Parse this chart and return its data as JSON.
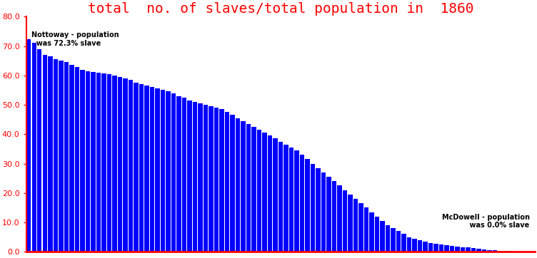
{
  "title": "total  no. of slaves/total population in  1860",
  "title_color": "red",
  "title_fontsize": 14,
  "bar_color": "blue",
  "background_color": "white",
  "axis_color": "red",
  "tick_color": "red",
  "annotation_left_text": "Nottoway - population\n  was 72.3% slave",
  "annotation_right_text": "McDowell - population\n    was 0.0% slave",
  "ylim": [
    0,
    80
  ],
  "yticks": [
    0.0,
    10.0,
    20.0,
    30.0,
    40.0,
    50.0,
    60.0,
    70.0,
    80.0
  ],
  "values": [
    72.3,
    71.0,
    69.0,
    67.0,
    66.5,
    65.5,
    65.0,
    64.5,
    63.5,
    62.8,
    61.8,
    61.5,
    61.2,
    61.0,
    60.8,
    60.5,
    60.0,
    59.5,
    59.0,
    58.5,
    57.5,
    57.0,
    56.5,
    56.0,
    55.5,
    55.0,
    54.5,
    54.0,
    53.0,
    52.5,
    51.5,
    51.0,
    50.5,
    50.0,
    49.5,
    49.0,
    48.5,
    47.5,
    46.5,
    45.5,
    44.5,
    43.5,
    42.5,
    41.5,
    40.5,
    39.5,
    38.5,
    37.5,
    36.5,
    35.5,
    34.5,
    33.0,
    31.5,
    30.0,
    28.5,
    27.0,
    25.5,
    24.0,
    22.5,
    21.0,
    19.5,
    18.0,
    16.5,
    15.0,
    13.5,
    12.0,
    10.5,
    9.0,
    8.0,
    7.0,
    6.0,
    5.0,
    4.5,
    4.0,
    3.5,
    3.0,
    2.8,
    2.5,
    2.2,
    2.0,
    1.8,
    1.6,
    1.4,
    1.2,
    1.0,
    0.8,
    0.6,
    0.5,
    0.4,
    0.3,
    0.2,
    0.1,
    0.05,
    0.02,
    0.0
  ]
}
